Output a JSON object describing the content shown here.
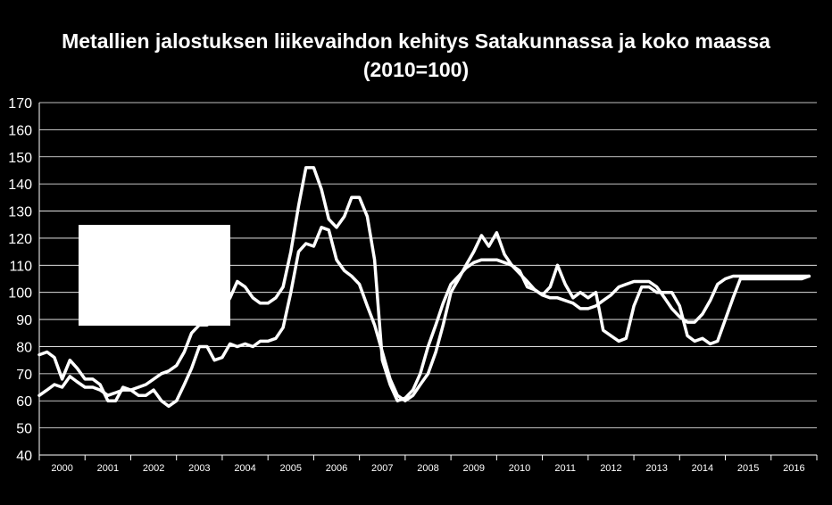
{
  "chart_data": {
    "type": "line",
    "title": "Metallien jalostuksen liikevaihdon kehitys Satakunnassa ja koko maassa",
    "subtitle": "(2010=100)",
    "xlabel": "",
    "ylabel": "",
    "ylim": [
      40,
      170
    ],
    "yticks": [
      40,
      50,
      60,
      70,
      80,
      90,
      100,
      110,
      120,
      130,
      140,
      150,
      160,
      170
    ],
    "xlim": [
      2000.0,
      2017.0
    ],
    "x_tick_labels": [
      "2000",
      "2001",
      "2002",
      "2003",
      "2004",
      "2005",
      "2006",
      "2007",
      "2008",
      "2009",
      "2010",
      "2011",
      "2012",
      "2013",
      "2014",
      "2015",
      "2016"
    ],
    "grid": true,
    "legend": "white box (contents blank)",
    "colors": {
      "background": "#000000",
      "line": "#ffffff",
      "grid": "#ffffff"
    },
    "series": [
      {
        "x": [
          2000.0,
          2000.17,
          2000.33,
          2000.5,
          2000.67,
          2000.83,
          2001.0,
          2001.17,
          2001.33,
          2001.5,
          2001.67,
          2001.83,
          2002.0,
          2002.17,
          2002.33,
          2002.5,
          2002.67,
          2002.83,
          2003.0,
          2003.17,
          2003.33,
          2003.5,
          2003.67,
          2003.83,
          2004.0,
          2004.17,
          2004.33,
          2004.5,
          2004.67,
          2004.83,
          2005.0,
          2005.17,
          2005.33,
          2005.5,
          2005.67,
          2005.83,
          2006.0,
          2006.17,
          2006.33,
          2006.5,
          2006.67,
          2006.83,
          2007.0,
          2007.17,
          2007.33,
          2007.5,
          2007.67,
          2007.83,
          2008.0,
          2008.17,
          2008.33,
          2008.5,
          2008.67,
          2008.83,
          2009.0,
          2009.17,
          2009.33,
          2009.5,
          2009.67,
          2009.83,
          2010.0,
          2010.17,
          2010.33,
          2010.5,
          2010.67,
          2010.83,
          2011.0,
          2011.17,
          2011.33,
          2011.5,
          2011.67,
          2011.83,
          2012.0,
          2012.17,
          2012.33,
          2012.5,
          2012.67,
          2012.83,
          2013.0,
          2013.17,
          2013.33,
          2013.5,
          2013.67,
          2013.83,
          2014.0,
          2014.17,
          2014.33,
          2014.5,
          2014.67,
          2014.83,
          2015.0,
          2015.17,
          2015.33,
          2015.5,
          2015.67,
          2015.83,
          2016.0,
          2016.17,
          2016.33,
          2016.5,
          2016.67,
          2016.83
        ],
        "values": [
          77,
          78,
          76,
          68,
          75,
          72,
          68,
          68,
          66,
          60,
          60,
          65,
          64,
          62,
          62,
          64,
          60,
          58,
          60,
          66,
          72,
          80,
          80,
          75,
          76,
          81,
          80,
          81,
          80,
          82,
          82,
          83,
          87,
          100,
          115,
          118,
          117,
          124,
          123,
          112,
          108,
          106,
          103,
          95,
          88,
          78,
          68,
          62,
          60,
          62,
          66,
          70,
          78,
          88,
          100,
          105,
          110,
          115,
          121,
          117,
          122,
          114,
          110,
          108,
          102,
          101,
          99,
          102,
          110,
          103,
          98,
          100,
          98,
          100,
          86,
          84,
          82,
          83,
          95,
          102,
          102,
          100,
          100,
          100,
          95,
          84,
          82,
          83,
          81,
          82,
          90,
          98,
          105,
          105,
          105,
          105,
          105,
          105,
          105,
          105,
          105,
          106
        ],
        "name": ""
      },
      {
        "x": [
          2000.0,
          2000.17,
          2000.33,
          2000.5,
          2000.67,
          2000.83,
          2001.0,
          2001.17,
          2001.33,
          2001.5,
          2001.67,
          2001.83,
          2002.0,
          2002.17,
          2002.33,
          2002.5,
          2002.67,
          2002.83,
          2003.0,
          2003.17,
          2003.33,
          2003.5,
          2003.67,
          2003.83,
          2004.0,
          2004.17,
          2004.33,
          2004.5,
          2004.67,
          2004.83,
          2005.0,
          2005.17,
          2005.33,
          2005.5,
          2005.67,
          2005.83,
          2006.0,
          2006.17,
          2006.33,
          2006.5,
          2006.67,
          2006.83,
          2007.0,
          2007.17,
          2007.33,
          2007.5,
          2007.67,
          2007.83,
          2008.0,
          2008.17,
          2008.33,
          2008.5,
          2008.67,
          2008.83,
          2009.0,
          2009.17,
          2009.33,
          2009.5,
          2009.67,
          2009.83,
          2010.0,
          2010.17,
          2010.33,
          2010.5,
          2010.67,
          2010.83,
          2011.0,
          2011.17,
          2011.33,
          2011.5,
          2011.67,
          2011.83,
          2012.0,
          2012.17,
          2012.33,
          2012.5,
          2012.67,
          2012.83,
          2013.0,
          2013.17,
          2013.33,
          2013.5,
          2013.67,
          2013.83,
          2014.0,
          2014.17,
          2014.33,
          2014.5,
          2014.67,
          2014.83,
          2015.0,
          2015.17,
          2015.33,
          2015.5,
          2015.67,
          2015.83,
          2016.0,
          2016.17,
          2016.33,
          2016.5,
          2016.67,
          2016.83
        ],
        "values": [
          62,
          64,
          66,
          65,
          69,
          67,
          65,
          65,
          64,
          62,
          63,
          64,
          64,
          65,
          66,
          68,
          70,
          71,
          73,
          78,
          85,
          88,
          88,
          90,
          93,
          98,
          104,
          102,
          98,
          96,
          96,
          98,
          102,
          115,
          132,
          146,
          146,
          138,
          127,
          124,
          128,
          135,
          135,
          128,
          112,
          75,
          66,
          60,
          61,
          64,
          70,
          80,
          88,
          96,
          103,
          106,
          109,
          111,
          112,
          112,
          112,
          111,
          110,
          107,
          104,
          101,
          99,
          98,
          98,
          97,
          96,
          94,
          94,
          95,
          97,
          99,
          102,
          103,
          104,
          104,
          104,
          102,
          98,
          94,
          91,
          89,
          89,
          92,
          97,
          103,
          105,
          106,
          106,
          106,
          106,
          106,
          106,
          106,
          106,
          106,
          106,
          106
        ],
        "name": ""
      }
    ]
  }
}
